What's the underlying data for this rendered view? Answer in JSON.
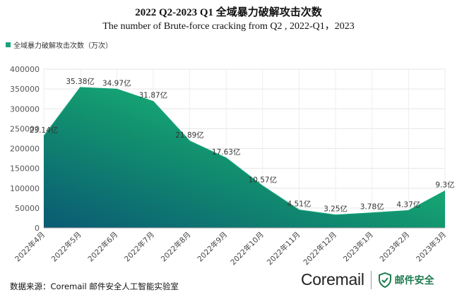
{
  "chart_data": {
    "type": "area",
    "title": "2022 Q2-2023 Q1 全域暴力破解攻击次数",
    "subtitle": "The number of Brute-force cracking from Q2 , 2022-Q1，2023",
    "categories": [
      "2022年4月",
      "2022年5月",
      "2022年6月",
      "2022年7月",
      "2022年8月",
      "2022年9月",
      "2022年10月",
      "2022年11月",
      "2022年12月",
      "2023年1月",
      "2023年2月",
      "2023年3月"
    ],
    "series": [
      {
        "name": "全域暴力破解攻击次数（万次）",
        "values": [
          231400,
          353800,
          349700,
          318700,
          218900,
          176300,
          105700,
          45100,
          32500,
          37800,
          43700,
          93000
        ],
        "labels": [
          "23.14亿",
          "35.38亿",
          "34.97亿",
          "31.87亿",
          "21.89亿",
          "17.63亿",
          "10.57亿",
          "4.51亿",
          "3.25亿",
          "3.78亿",
          "4.37亿",
          "9.3亿"
        ]
      }
    ],
    "yticks": [
      "0",
      "50000",
      "100000",
      "150000",
      "200000",
      "250000",
      "300000",
      "350000",
      "400000"
    ],
    "ylim": [
      0,
      400000
    ],
    "grid": true,
    "legend_position": "top-left",
    "colors": {
      "area_dark": "#0a5a73",
      "area_mid": "#12906f",
      "area_light": "#1fd67e",
      "line": "#12a37a"
    }
  },
  "footer": {
    "source": "数据来源：Coremail 邮件安全人工智能实验室",
    "brand_name": "Coremail",
    "brand_sub": "邮件安全"
  }
}
